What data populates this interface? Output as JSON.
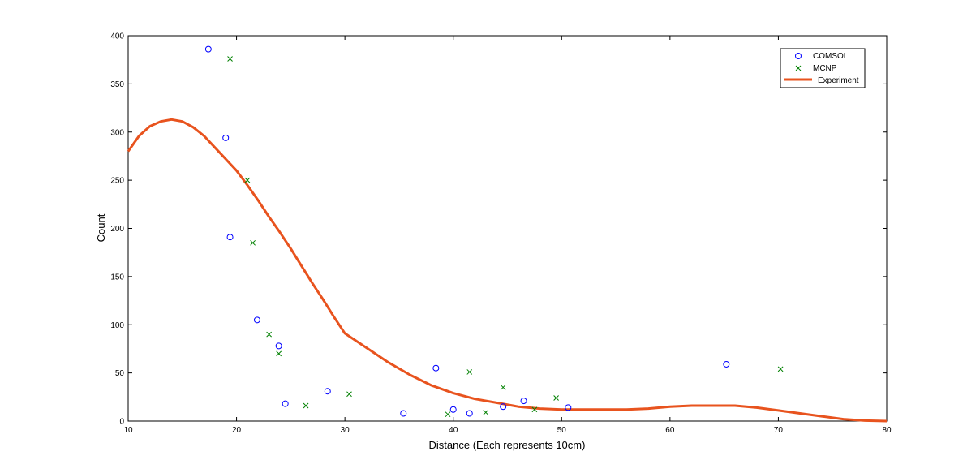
{
  "chart_data": {
    "type": "scatter",
    "xlabel": "Distance (Each represents 10cm)",
    "ylabel": "Count",
    "xlim": [
      10,
      80
    ],
    "ylim": [
      0,
      400
    ],
    "xticks": [
      10,
      20,
      30,
      40,
      50,
      60,
      70,
      80
    ],
    "yticks": [
      0,
      50,
      100,
      150,
      200,
      250,
      300,
      350,
      400
    ],
    "grid": false,
    "legend_position": "top-right",
    "series": [
      {
        "name": "COMSOL",
        "kind": "scatter",
        "marker": "circle",
        "color": "#0000ff",
        "x": [
          17.4,
          19.0,
          19.4,
          21.9,
          23.9,
          24.5,
          28.4,
          35.4,
          38.4,
          40.0,
          41.5,
          44.6,
          46.5,
          50.6,
          65.2
        ],
        "y": [
          386,
          294,
          191,
          105,
          78,
          18,
          31,
          8,
          55,
          12,
          8,
          15,
          21,
          14,
          59
        ]
      },
      {
        "name": "MCNP",
        "kind": "scatter",
        "marker": "x",
        "color": "#008000",
        "x": [
          19.4,
          21.0,
          21.5,
          23.0,
          23.9,
          26.4,
          30.4,
          39.5,
          41.5,
          43.0,
          44.6,
          47.5,
          49.5,
          70.2
        ],
        "y": [
          376,
          250,
          185,
          90,
          70,
          16,
          28,
          7,
          51,
          9,
          35,
          12,
          24,
          54
        ]
      },
      {
        "name": "Experiment",
        "kind": "line",
        "color": "#e8531e",
        "x": [
          10,
          11,
          12,
          13,
          14,
          15,
          16,
          17,
          18,
          19,
          20,
          21,
          22,
          23,
          24,
          25,
          26,
          27,
          28,
          29,
          30,
          32,
          34,
          36,
          38,
          40,
          42,
          44,
          46,
          48,
          50,
          52,
          54,
          56,
          58,
          60,
          62,
          64,
          66,
          68,
          70,
          72,
          74,
          76,
          78,
          80
        ],
        "y": [
          280,
          296,
          306,
          311,
          313,
          311,
          305,
          296,
          284,
          272,
          260,
          245,
          229,
          212,
          196,
          179,
          161,
          143,
          126,
          108,
          91,
          76,
          61,
          48,
          37,
          29,
          23,
          19,
          15,
          13,
          12,
          12,
          12,
          12,
          13,
          15,
          16,
          16,
          16,
          14,
          11,
          8,
          5,
          2,
          0.5,
          0
        ]
      }
    ]
  }
}
